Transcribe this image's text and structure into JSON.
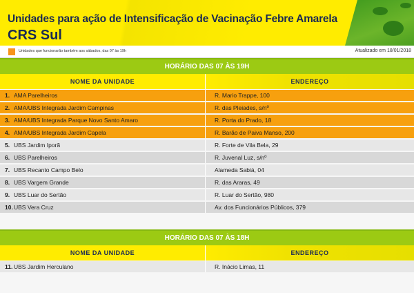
{
  "header": {
    "title": "Unidades para ação de Intensificação de Vacinação Febre Amarela",
    "subtitle": "CRS Sul"
  },
  "legend": {
    "text": "Unidades que funcionarão também aos sábados, das 07 às 19h",
    "color": "#f7941d",
    "updated": "Atualizado em 18/01/2018"
  },
  "sections": [
    {
      "title": "HORÁRIO DAS 07 ÀS 19H",
      "col_name": "NOME DA UNIDADE",
      "col_address": "ENDEREÇO",
      "rows": [
        {
          "num": "1.",
          "name": "AMA Parelheiros",
          "address": "R. Mario Trappe, 100",
          "saturday": true
        },
        {
          "num": "2.",
          "name": "AMA/UBS Integrada Jardim Campinas",
          "address": "R. das Pleiades, s/nº",
          "saturday": true
        },
        {
          "num": "3.",
          "name": "AMA/UBS Integrada Parque Novo Santo Amaro",
          "address": "R. Porta do Prado, 18",
          "saturday": true
        },
        {
          "num": "4.",
          "name": "AMA/UBS Integrada Jardim Capela",
          "address": "R. Barão de Paiva Manso, 200",
          "saturday": true
        },
        {
          "num": "5.",
          "name": "UBS Jardim Iporã",
          "address": "R. Forte de Vila Bela, 29",
          "saturday": false
        },
        {
          "num": "6.",
          "name": "UBS Parelheiros",
          "address": "R. Juvenal Luz, s/nº",
          "saturday": false
        },
        {
          "num": "7.",
          "name": "UBS Recanto Campo Belo",
          "address": "Alameda Sabiá, 04",
          "saturday": false
        },
        {
          "num": "8.",
          "name": "UBS Vargem Grande",
          "address": "R. das Araras, 49",
          "saturday": false
        },
        {
          "num": "9.",
          "name": "UBS Luar do Sertão",
          "address": "R. Luar do Sertão, 980",
          "saturday": false
        },
        {
          "num": "10.",
          "name": "UBS Vera Cruz",
          "address": "Av. dos Funcionários Públicos, 379",
          "saturday": false
        }
      ]
    },
    {
      "title": "HORÁRIO DAS 07 ÀS 18H",
      "col_name": "NOME DA UNIDADE",
      "col_address": "ENDEREÇO",
      "rows": [
        {
          "num": "11.",
          "name": "UBS Jardim Herculano",
          "address": "R. Inácio Limas, 11",
          "saturday": false
        }
      ]
    }
  ]
}
